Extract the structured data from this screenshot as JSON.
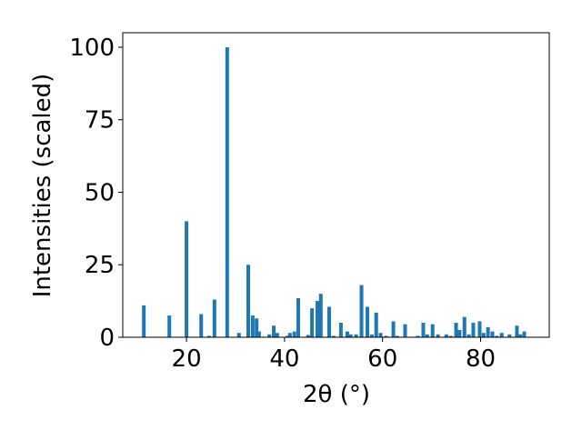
{
  "chart_data": {
    "type": "bar",
    "x_label": "2θ (°)",
    "y_label": "Intensities (scaled)",
    "x": [
      11.3,
      16.5,
      20.0,
      23.0,
      24.6,
      25.7,
      28.3,
      30.7,
      32.6,
      33.5,
      34.3,
      34.8,
      36.9,
      37.8,
      38.5,
      40.6,
      41.1,
      42.0,
      42.8,
      44.8,
      45.6,
      46.7,
      47.4,
      49.1,
      50.0,
      51.5,
      52.8,
      53.5,
      54.6,
      55.7,
      56.9,
      57.8,
      58.7,
      59.6,
      60.7,
      62.2,
      63.0,
      64.6,
      67.2,
      68.3,
      69.1,
      70.2,
      71.3,
      73.0,
      73.9,
      75.0,
      75.7,
      76.7,
      77.6,
      78.5,
      79.8,
      80.6,
      81.5,
      82.4,
      83.3,
      84.3,
      85.9,
      87.4,
      88.1,
      88.9
    ],
    "values": [
      11,
      7.5,
      40,
      8,
      0.5,
      13,
      100,
      1.5,
      25,
      7.5,
      6.5,
      2,
      1,
      4,
      1.5,
      0.5,
      1.5,
      2,
      13.5,
      0.8,
      10,
      12.5,
      15,
      10.5,
      0.5,
      5,
      2,
      1,
      1,
      18,
      10.5,
      1,
      8.5,
      1.5,
      0.5,
      5.5,
      0.5,
      4.5,
      0.5,
      5,
      1,
      4.5,
      1,
      1,
      0.5,
      5,
      2.5,
      7,
      1,
      5,
      5.5,
      1.5,
      3.5,
      2,
      0.5,
      1.5,
      1,
      4,
      1,
      2
    ],
    "color": "#1f77b4",
    "xlim": [
      7,
      94
    ],
    "ylim": [
      0,
      105
    ],
    "xticks": [
      20,
      40,
      60,
      80
    ],
    "yticks": [
      0,
      25,
      50,
      75,
      100
    ]
  }
}
